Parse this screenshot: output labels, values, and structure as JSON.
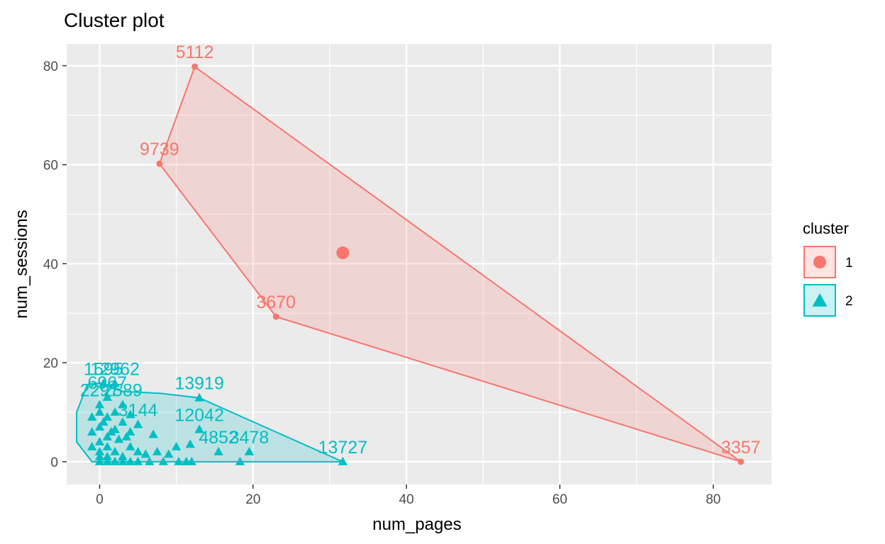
{
  "chart_data": {
    "type": "scatter",
    "title": "Cluster plot",
    "xlabel": "num_pages",
    "ylabel": "num_sessions",
    "xlim": [
      -4.3,
      87.6
    ],
    "ylim": [
      -4.6,
      84.4
    ],
    "x_ticks": [
      0,
      20,
      40,
      60,
      80
    ],
    "y_ticks": [
      0,
      20,
      40,
      60,
      80
    ],
    "x_tick_labels": [
      "0",
      "20",
      "40",
      "60",
      "80"
    ],
    "y_tick_labels": [
      "0",
      "20",
      "40",
      "60",
      "80"
    ],
    "grid": true,
    "legend": {
      "title": "cluster",
      "position": "right",
      "entries": [
        {
          "label": "1",
          "color": "#F8766D",
          "shape": "circle"
        },
        {
          "label": "2",
          "color": "#00BFC4",
          "shape": "triangle"
        }
      ]
    },
    "series": [
      {
        "name": "1",
        "color": "#F8766D",
        "marker": "circle",
        "hull": [
          [
            12.4,
            79.8
          ],
          [
            83.6,
            0
          ],
          [
            23,
            29.3
          ],
          [
            7.8,
            60.2
          ]
        ],
        "center": [
          31.7,
          42.2
        ],
        "points": [
          {
            "x": 12.4,
            "y": 79.8,
            "label": "5112"
          },
          {
            "x": 7.8,
            "y": 60.2,
            "label": "9739"
          },
          {
            "x": 23,
            "y": 29.3,
            "label": "3670"
          },
          {
            "x": 83.6,
            "y": 0,
            "label": "3357"
          }
        ]
      },
      {
        "name": "2",
        "color": "#00BFC4",
        "marker": "triangle",
        "hull": [
          [
            -1.6,
            15.6
          ],
          [
            -0.3,
            15.9
          ],
          [
            3,
            14.2
          ],
          [
            8,
            13.8
          ],
          [
            13,
            12.9
          ],
          [
            31.7,
            0
          ],
          [
            -1,
            0
          ],
          [
            -3,
            4
          ],
          [
            -3,
            10
          ]
        ],
        "points": [
          {
            "x": 13,
            "y": 12.9,
            "label": "13919"
          },
          {
            "x": 31.7,
            "y": 0,
            "label": "13727"
          },
          {
            "x": 13,
            "y": 6.5,
            "label": "12042"
          },
          {
            "x": 19.5,
            "y": 2,
            "label": "3478"
          },
          {
            "x": 18.3,
            "y": 0,
            "label": ""
          },
          {
            "x": 15.5,
            "y": 2,
            "label": "4852"
          },
          {
            "x": 11.8,
            "y": 3.5,
            "label": ""
          },
          {
            "x": 10,
            "y": 3,
            "label": ""
          },
          {
            "x": 12,
            "y": 0,
            "label": ""
          },
          {
            "x": 11.3,
            "y": 0,
            "label": ""
          },
          {
            "x": 10.3,
            "y": 0,
            "label": ""
          },
          {
            "x": 8.3,
            "y": 0,
            "label": ""
          },
          {
            "x": 6.5,
            "y": 0,
            "label": ""
          },
          {
            "x": 6,
            "y": 1.5,
            "label": ""
          },
          {
            "x": 5,
            "y": 7.5,
            "label": "3144"
          },
          {
            "x": 7.5,
            "y": 2,
            "label": ""
          },
          {
            "x": 7,
            "y": 5.5,
            "label": ""
          },
          {
            "x": 9,
            "y": 1.5,
            "label": ""
          },
          {
            "x": 4,
            "y": 9.5,
            "label": ""
          },
          {
            "x": 3,
            "y": 11.5,
            "label": "2589"
          },
          {
            "x": 2,
            "y": 15.8,
            "label": "12962"
          },
          {
            "x": 0.5,
            "y": 15.8,
            "label": "1595"
          },
          {
            "x": 1,
            "y": 13,
            "label": "6967"
          },
          {
            "x": 0,
            "y": 11.5,
            "label": "2297"
          },
          {
            "x": 2,
            "y": 10,
            "label": ""
          },
          {
            "x": 1,
            "y": 9,
            "label": ""
          },
          {
            "x": 3,
            "y": 8,
            "label": ""
          },
          {
            "x": 4,
            "y": 6,
            "label": ""
          },
          {
            "x": 2,
            "y": 6.5,
            "label": ""
          },
          {
            "x": 1,
            "y": 5,
            "label": ""
          },
          {
            "x": 0,
            "y": 7,
            "label": ""
          },
          {
            "x": 0,
            "y": 4,
            "label": ""
          },
          {
            "x": 1,
            "y": 3,
            "label": ""
          },
          {
            "x": 2,
            "y": 2,
            "label": ""
          },
          {
            "x": 3,
            "y": 1,
            "label": ""
          },
          {
            "x": 4,
            "y": 3,
            "label": ""
          },
          {
            "x": 5,
            "y": 2,
            "label": ""
          },
          {
            "x": 0,
            "y": 0,
            "label": ""
          },
          {
            "x": 1,
            "y": 0,
            "label": ""
          },
          {
            "x": 2,
            "y": 0,
            "label": ""
          },
          {
            "x": 3,
            "y": 0,
            "label": ""
          },
          {
            "x": 4,
            "y": 0,
            "label": ""
          },
          {
            "x": 5,
            "y": 0,
            "label": ""
          },
          {
            "x": 0,
            "y": 1,
            "label": ""
          },
          {
            "x": 1,
            "y": 1,
            "label": ""
          },
          {
            "x": 0,
            "y": 2,
            "label": ""
          },
          {
            "x": -1,
            "y": 3,
            "label": ""
          },
          {
            "x": -1,
            "y": 6,
            "label": ""
          },
          {
            "x": -1,
            "y": 9,
            "label": ""
          },
          {
            "x": 0.5,
            "y": 8,
            "label": ""
          },
          {
            "x": 2.5,
            "y": 4.5,
            "label": ""
          },
          {
            "x": 3.5,
            "y": 5,
            "label": ""
          },
          {
            "x": 1.5,
            "y": 6,
            "label": ""
          },
          {
            "x": 0,
            "y": 10,
            "label": ""
          }
        ]
      }
    ]
  }
}
